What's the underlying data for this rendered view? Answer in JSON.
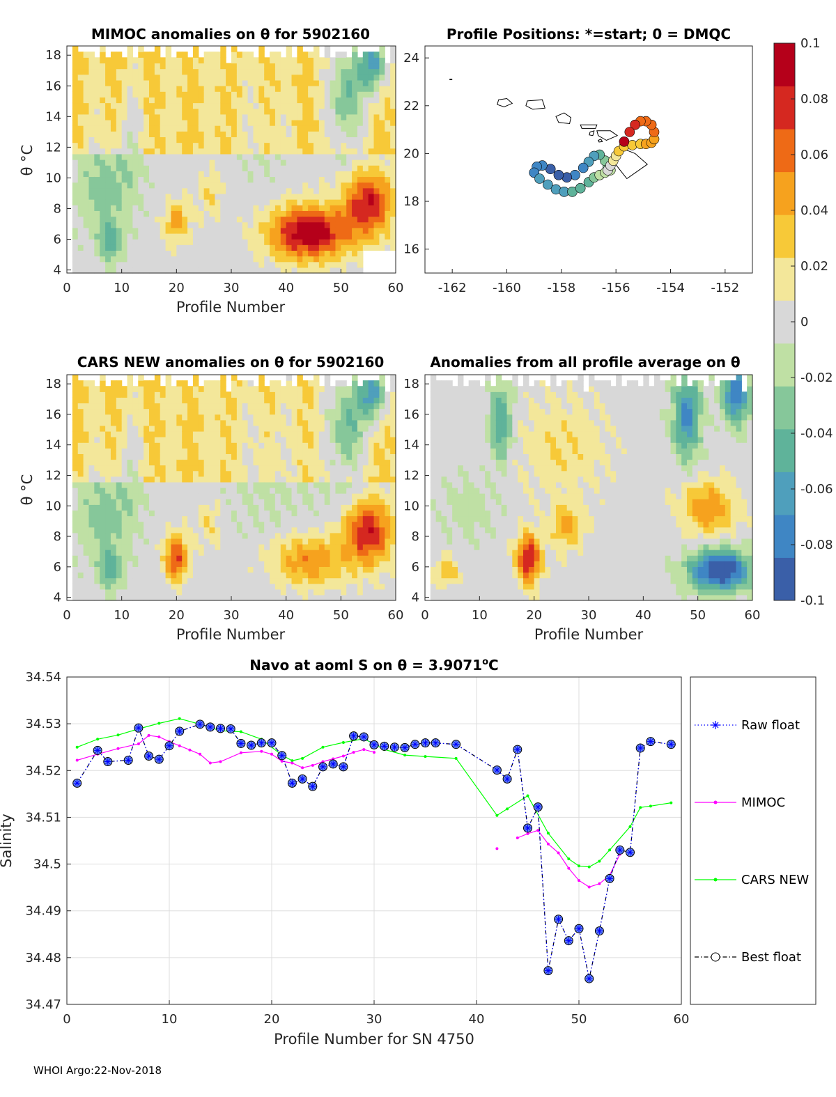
{
  "colors": {
    "raw_float": "#0000ff",
    "mimoc": "#ff00ff",
    "cars_new": "#00ff00",
    "best_float": "#000000",
    "best_marker_fill": "#6688ee"
  },
  "footer": "WHOI Argo:22-Nov-2018",
  "colorbar": {
    "ticks": [
      "0.1",
      "0.08",
      "0.06",
      "0.04",
      "0.02",
      "0",
      "-0.02",
      "-0.04",
      "-0.06",
      "-0.08",
      "-0.1"
    ],
    "colormap": [
      "#3a5fa8",
      "#3f86c4",
      "#4f9fbc",
      "#5fb39a",
      "#86c79a",
      "#bfe0a4",
      "#d8d8d8",
      "#f3e79a",
      "#f7c938",
      "#f6a21e",
      "#ee6a16",
      "#d52820",
      "#b5001a"
    ]
  },
  "chart_data": [
    {
      "id": "mimoc",
      "type": "heatmap",
      "title": "MIMOC anomalies on θ  for 5902160",
      "xlabel": "Profile Number",
      "ylabel": "θ °C",
      "xlim": [
        0,
        60
      ],
      "ylim": [
        3.8,
        18.6
      ],
      "xticks": [
        "0",
        "10",
        "20",
        "30",
        "40",
        "50",
        "60"
      ],
      "yticks": [
        "4",
        "6",
        "8",
        "10",
        "12",
        "14",
        "16",
        "18"
      ],
      "clim": [
        -0.1,
        0.1
      ]
    },
    {
      "id": "positions",
      "type": "scatter",
      "title": "Profile Positions: *=start; 0 = DMQC",
      "xlim": [
        -163,
        -151
      ],
      "ylim": [
        15,
        24.5
      ],
      "xticks": [
        "-162",
        "-160",
        "-158",
        "-156",
        "-154",
        "-152"
      ],
      "yticks": [
        "16",
        "18",
        "20",
        "22",
        "24"
      ],
      "lon": [
        -155.7,
        -155.5,
        -155.3,
        -155.1,
        -154.9,
        -154.7,
        -154.6,
        -154.6,
        -154.7,
        -154.9,
        -155.1,
        -155.4,
        -155.7,
        -155.9,
        -156.0,
        -156.1,
        -156.2,
        -156.3,
        -156.4,
        -156.6,
        -156.8,
        -157.0,
        -157.3,
        -157.6,
        -157.9,
        -158.2,
        -158.5,
        -158.8,
        -159.0,
        -158.9,
        -158.7,
        -158.4,
        -158.1,
        -157.8,
        -157.5,
        -157.2,
        -157.0,
        -156.8,
        -156.6,
        -156.4,
        -156.3,
        -156.2
      ],
      "lat": [
        20.5,
        20.9,
        21.2,
        21.35,
        21.35,
        21.2,
        20.9,
        20.6,
        20.45,
        20.4,
        20.4,
        20.35,
        20.3,
        20.1,
        19.9,
        19.7,
        19.5,
        19.3,
        19.2,
        19.1,
        19.0,
        18.8,
        18.55,
        18.4,
        18.4,
        18.5,
        18.7,
        18.95,
        19.2,
        19.45,
        19.5,
        19.35,
        19.1,
        19.0,
        19.1,
        19.4,
        19.65,
        19.9,
        19.95,
        19.7,
        19.45,
        19.3
      ],
      "anom": [
        0.095,
        0.09,
        0.085,
        0.075,
        0.07,
        0.065,
        0.06,
        0.055,
        0.05,
        0.045,
        0.04,
        0.035,
        0.03,
        0.025,
        0.02,
        0.015,
        0.005,
        -0.005,
        -0.015,
        -0.025,
        -0.035,
        -0.045,
        -0.05,
        -0.055,
        -0.06,
        -0.065,
        -0.07,
        -0.075,
        -0.08,
        -0.085,
        -0.09,
        -0.095,
        -0.1,
        -0.095,
        -0.09,
        -0.08,
        -0.07,
        -0.06,
        -0.05,
        -0.04,
        -0.03,
        -0.02
      ]
    },
    {
      "id": "cars",
      "type": "heatmap",
      "title": "CARS NEW anomalies on θ for 5902160",
      "xlabel": "Profile Number",
      "ylabel": "θ °C",
      "xlim": [
        0,
        60
      ],
      "ylim": [
        3.8,
        18.6
      ],
      "xticks": [
        "0",
        "10",
        "20",
        "30",
        "40",
        "50",
        "60"
      ],
      "yticks": [
        "4",
        "6",
        "8",
        "10",
        "12",
        "14",
        "16",
        "18"
      ],
      "clim": [
        -0.1,
        0.1
      ]
    },
    {
      "id": "allavg",
      "type": "heatmap",
      "title": "Anomalies from all profile average on θ",
      "xlabel": "Profile Number",
      "xlim": [
        0,
        60
      ],
      "ylim": [
        3.8,
        18.6
      ],
      "xticks": [
        "0",
        "10",
        "20",
        "30",
        "40",
        "50",
        "60"
      ],
      "yticks": [
        "4",
        "6",
        "8",
        "10",
        "12",
        "14",
        "16",
        "18"
      ],
      "clim": [
        -0.1,
        0.1
      ]
    },
    {
      "id": "salinity",
      "type": "line",
      "title": "Navo at aoml S on θ = 3.9071°C",
      "title_main": "Navo at aoml S on θ = 3.9071",
      "title_sup": "o",
      "title_unit": "C",
      "xlabel": "Profile Number for SN 4750",
      "ylabel": "Salinity",
      "xlim": [
        0,
        60
      ],
      "ylim": [
        34.47,
        34.54
      ],
      "xticks": [
        "0",
        "10",
        "20",
        "30",
        "40",
        "50",
        "60"
      ],
      "yticks": [
        "34.54",
        "34.53",
        "34.52",
        "34.51",
        "34.5",
        "34.49",
        "34.48",
        "34.47"
      ],
      "legend": [
        "Raw float",
        "MIMOC",
        "CARS NEW",
        "Best float"
      ],
      "series": [
        {
          "name": "Best float",
          "x": [
            1,
            3,
            4,
            6,
            7,
            8,
            9,
            10,
            11,
            13,
            14,
            15,
            16,
            17,
            18,
            19,
            20,
            21,
            22,
            23,
            24,
            25,
            26,
            27,
            28,
            29,
            30,
            31,
            32,
            33,
            34,
            35,
            36,
            38,
            42,
            43,
            44,
            45,
            46,
            47,
            48,
            49,
            50,
            51,
            52,
            53,
            54,
            55,
            56,
            57,
            59
          ],
          "y": [
            34.5173,
            34.5243,
            34.5219,
            34.5222,
            34.5291,
            34.5231,
            34.5224,
            34.5253,
            34.5284,
            34.5299,
            34.5293,
            34.529,
            34.5289,
            34.5258,
            34.5254,
            34.5259,
            34.5259,
            34.5232,
            34.5173,
            34.5182,
            34.5166,
            34.5208,
            34.5214,
            34.5208,
            34.5274,
            34.5272,
            34.5255,
            34.5252,
            34.525,
            34.5249,
            34.5256,
            34.5259,
            34.5259,
            34.5256,
            34.5201,
            34.5182,
            34.5245,
            34.5077,
            34.5122,
            34.4772,
            34.4882,
            34.4836,
            34.4862,
            34.4755,
            34.4857,
            34.4969,
            34.503,
            34.5025,
            34.5248,
            34.5262,
            34.5256
          ]
        },
        {
          "name": "MIMOC",
          "x": [
            1,
            3,
            5,
            7,
            8,
            9,
            10,
            11,
            12,
            13,
            14,
            15,
            17,
            19,
            20,
            21,
            22,
            23,
            24,
            25,
            26,
            27,
            28,
            29,
            30
          ],
          "y": [
            34.5222,
            34.5235,
            34.5247,
            34.5257,
            34.5275,
            34.5272,
            34.5262,
            34.5253,
            34.5244,
            34.5235,
            34.5216,
            34.5219,
            34.5238,
            34.5241,
            34.5235,
            34.522,
            34.5216,
            34.5206,
            34.5211,
            34.5219,
            34.5225,
            34.5231,
            34.5239,
            34.5245,
            34.5239
          ],
          "x2": [
            44,
            45,
            46,
            47,
            48,
            49,
            50,
            51,
            52,
            53,
            54
          ],
          "y2": [
            34.5056,
            34.5065,
            34.5072,
            34.5043,
            34.5024,
            34.4991,
            34.4965,
            34.4951,
            34.4958,
            34.4976,
            34.5021
          ],
          "isolated": [
            42,
            34.5033
          ]
        },
        {
          "name": "CARS NEW",
          "x": [
            1,
            3,
            5,
            7,
            9,
            11,
            13,
            15,
            17,
            19,
            21,
            22,
            23,
            25,
            27,
            29,
            31,
            33,
            35,
            38,
            42,
            43,
            45,
            47,
            49,
            50,
            51,
            52,
            53,
            55,
            56,
            57,
            59
          ],
          "y": [
            34.525,
            34.5267,
            34.5276,
            34.5289,
            34.5301,
            34.5311,
            34.5299,
            34.5285,
            34.5283,
            34.5267,
            34.5233,
            34.5221,
            34.5226,
            34.525,
            34.526,
            34.5268,
            34.5245,
            34.5233,
            34.523,
            34.5226,
            34.5104,
            34.5118,
            34.5146,
            34.5066,
            34.5011,
            34.4996,
            34.4994,
            34.5006,
            34.503,
            34.508,
            34.5121,
            34.5124,
            34.5131
          ]
        }
      ]
    }
  ]
}
